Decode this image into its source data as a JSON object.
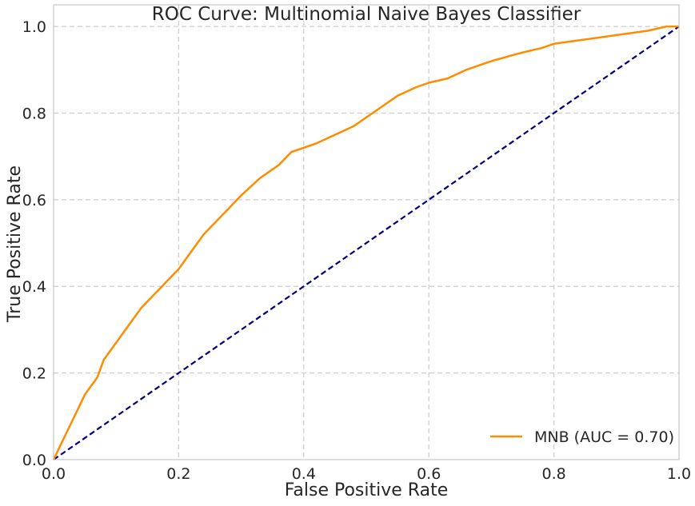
{
  "chart_data": {
    "type": "line",
    "title": "ROC Curve: Multinomial Naive Bayes Classifier",
    "xlabel": "False Positive Rate",
    "ylabel": "True Positive Rate",
    "xlim": [
      0.0,
      1.0
    ],
    "ylim": [
      0.0,
      1.05
    ],
    "xticks": [
      "0.0",
      "0.2",
      "0.4",
      "0.6",
      "0.8",
      "1.0"
    ],
    "yticks": [
      "0.0",
      "0.2",
      "0.4",
      "0.6",
      "0.8",
      "1.0"
    ],
    "grid": true,
    "legend_position": "lower-right",
    "series": [
      {
        "name": "MNB (AUC = 0.70)",
        "color": "#ff8c00",
        "x": [
          0.0,
          0.01,
          0.02,
          0.03,
          0.04,
          0.05,
          0.06,
          0.07,
          0.08,
          0.09,
          0.1,
          0.12,
          0.14,
          0.16,
          0.18,
          0.2,
          0.22,
          0.24,
          0.26,
          0.28,
          0.3,
          0.33,
          0.36,
          0.38,
          0.4,
          0.42,
          0.45,
          0.48,
          0.5,
          0.52,
          0.55,
          0.58,
          0.6,
          0.63,
          0.66,
          0.7,
          0.75,
          0.78,
          0.8,
          0.85,
          0.9,
          0.95,
          0.98,
          1.0
        ],
        "y": [
          0.0,
          0.03,
          0.06,
          0.09,
          0.12,
          0.15,
          0.17,
          0.19,
          0.23,
          0.25,
          0.27,
          0.31,
          0.35,
          0.38,
          0.41,
          0.44,
          0.48,
          0.52,
          0.55,
          0.58,
          0.61,
          0.65,
          0.68,
          0.71,
          0.72,
          0.73,
          0.75,
          0.77,
          0.79,
          0.81,
          0.84,
          0.86,
          0.87,
          0.88,
          0.9,
          0.92,
          0.94,
          0.95,
          0.96,
          0.97,
          0.98,
          0.99,
          1.0,
          1.0
        ]
      },
      {
        "name": "",
        "color": "#000080",
        "style": "dashed",
        "x": [
          0.0,
          1.0
        ],
        "y": [
          0.0,
          1.0
        ]
      }
    ]
  }
}
